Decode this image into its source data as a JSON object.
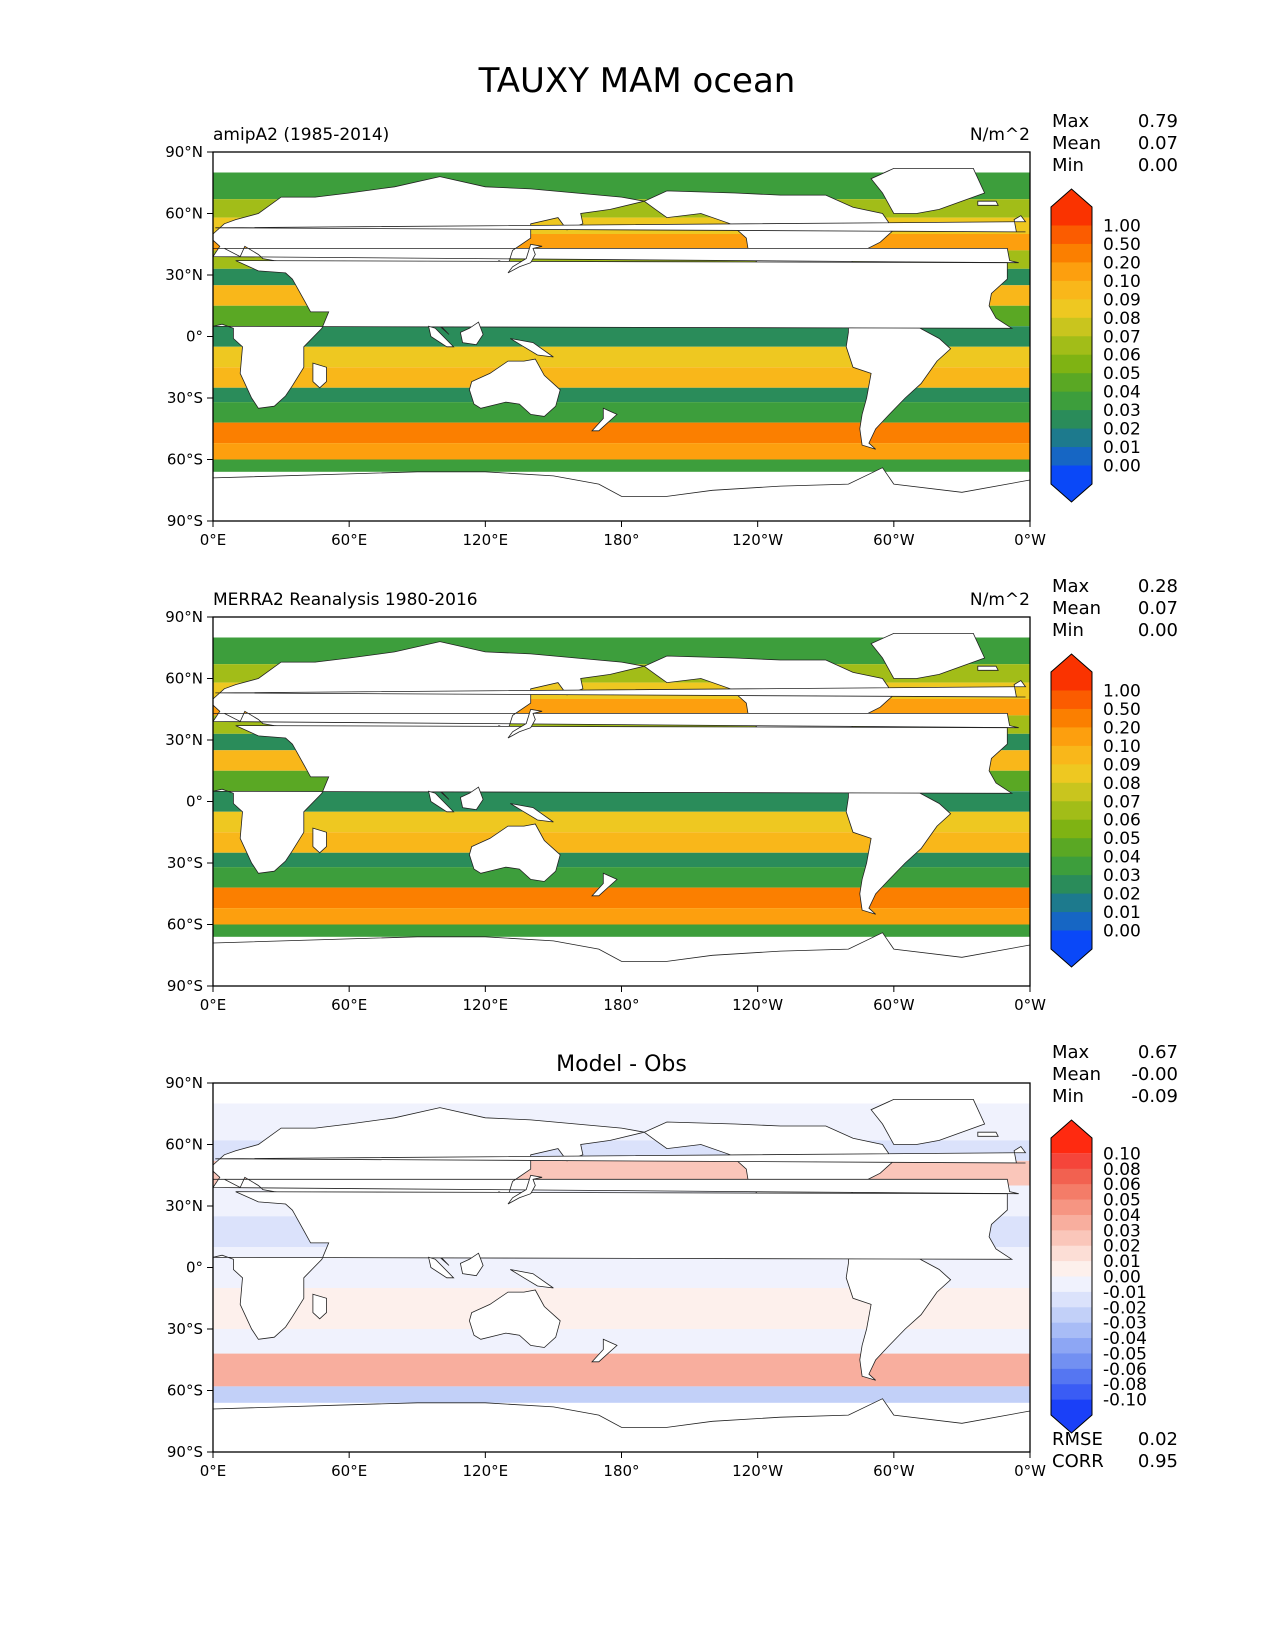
{
  "title": "TAUXY MAM ocean",
  "chart_data": [
    {
      "type": "heatmap",
      "left_label": "amipA2 (1985-2014)",
      "units": "N/m^2",
      "stats": [
        {
          "label": "Max",
          "value": "0.79"
        },
        {
          "label": "Mean",
          "value": "0.07"
        },
        {
          "label": "Min",
          "value": "0.00"
        }
      ],
      "colorbar_labels": [
        "1.00",
        "0.50",
        "0.20",
        "0.10",
        "0.09",
        "0.08",
        "0.07",
        "0.06",
        "0.05",
        "0.04",
        "0.03",
        "0.02",
        "0.01",
        "0.00"
      ],
      "colorbar_colors": [
        "#fa3300",
        "#fb5c00",
        "#fb7f00",
        "#fd9f0e",
        "#f9b71a",
        "#eec821",
        "#c9c51e",
        "#a2bd18",
        "#7fb313",
        "#5aa824",
        "#3d9e3c",
        "#2a8c5a",
        "#1d7a8d",
        "#1666c4",
        "#0a48f8"
      ],
      "xticks": [
        "0°E",
        "60°E",
        "120°E",
        "180°",
        "120°W",
        "60°W",
        "0°W"
      ],
      "yticks": [
        "90°N",
        "60°N",
        "30°N",
        "0°",
        "30°S",
        "60°S",
        "90°S"
      ]
    },
    {
      "type": "heatmap",
      "left_label": "MERRA2 Reanalysis 1980-2016",
      "units": "N/m^2",
      "stats": [
        {
          "label": "Max",
          "value": "0.28"
        },
        {
          "label": "Mean",
          "value": "0.07"
        },
        {
          "label": "Min",
          "value": "0.00"
        }
      ],
      "colorbar_labels": [
        "1.00",
        "0.50",
        "0.20",
        "0.10",
        "0.09",
        "0.08",
        "0.07",
        "0.06",
        "0.05",
        "0.04",
        "0.03",
        "0.02",
        "0.01",
        "0.00"
      ],
      "colorbar_colors": [
        "#fa3300",
        "#fb5c00",
        "#fb7f00",
        "#fd9f0e",
        "#f9b71a",
        "#eec821",
        "#c9c51e",
        "#a2bd18",
        "#7fb313",
        "#5aa824",
        "#3d9e3c",
        "#2a8c5a",
        "#1d7a8d",
        "#1666c4",
        "#0a48f8"
      ],
      "xticks": [
        "0°E",
        "60°E",
        "120°E",
        "180°",
        "120°W",
        "60°W",
        "0°W"
      ],
      "yticks": [
        "90°N",
        "60°N",
        "30°N",
        "0°",
        "30°S",
        "60°S",
        "90°S"
      ]
    },
    {
      "type": "heatmap",
      "center_title": "Model - Obs",
      "stats": [
        {
          "label": "Max",
          "value": "0.67"
        },
        {
          "label": "Mean",
          "value": "-0.00"
        },
        {
          "label": "Min",
          "value": "-0.09"
        }
      ],
      "colorbar_labels": [
        "0.10",
        "0.08",
        "0.06",
        "0.05",
        "0.04",
        "0.03",
        "0.02",
        "0.01",
        "0.00",
        "-0.01",
        "-0.02",
        "-0.03",
        "-0.04",
        "-0.05",
        "-0.06",
        "-0.08",
        "-0.10"
      ],
      "colorbar_colors": [
        "#ff2a10",
        "#f5453a",
        "#f26150",
        "#f47c68",
        "#f69582",
        "#f8ae9e",
        "#fac6ba",
        "#fcded6",
        "#fdf0ec",
        "#f0f2fd",
        "#dbe2fb",
        "#c2d0f8",
        "#a8bcf6",
        "#8da6f4",
        "#7290f2",
        "#5576f2",
        "#3a5cf5",
        "#1a40f8"
      ],
      "xticks": [
        "0°E",
        "60°E",
        "120°E",
        "180°",
        "120°W",
        "60°W",
        "0°W"
      ],
      "yticks": [
        "90°N",
        "60°N",
        "30°N",
        "0°",
        "30°S",
        "60°S",
        "90°S"
      ],
      "footer_stats": [
        {
          "label": "RMSE",
          "value": "0.02"
        },
        {
          "label": "CORR",
          "value": "0.95"
        }
      ]
    }
  ]
}
